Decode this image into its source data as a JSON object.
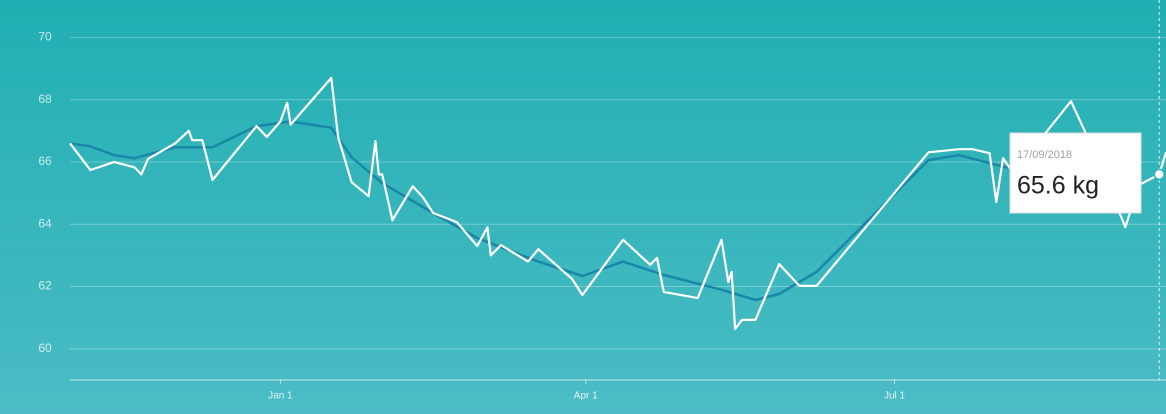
{
  "chart_data": {
    "type": "line",
    "xlim": [
      "2017-10-31",
      "2018-09-19"
    ],
    "xticks": [
      {
        "value": "2018-01-01",
        "label": "Jan 1"
      },
      {
        "value": "2018-04-01",
        "label": "Apr 1"
      },
      {
        "value": "2018-07-01",
        "label": "Jul 1"
      }
    ],
    "ylim": [
      59,
      71.2
    ],
    "yticks": [
      60,
      62,
      64,
      66,
      68,
      70
    ],
    "grid": true,
    "series": [
      {
        "color": "#ffffff",
        "x": [
          "2017-10-31",
          "2017-11-06",
          "2017-11-13",
          "2017-11-19",
          "2017-11-21",
          "2017-11-23",
          "2017-12-01",
          "2017-12-05",
          "2017-12-06",
          "2017-12-09",
          "2017-12-12",
          "2017-12-25",
          "2017-12-28",
          "2018-01-01",
          "2018-01-03",
          "2018-01-04",
          "2018-01-16",
          "2018-01-18",
          "2018-01-22",
          "2018-01-27",
          "2018-01-29",
          "2018-01-30",
          "2018-01-31",
          "2018-02-03",
          "2018-02-09",
          "2018-02-12",
          "2018-02-15",
          "2018-02-22",
          "2018-02-28",
          "2018-03-03",
          "2018-03-04",
          "2018-03-07",
          "2018-03-15",
          "2018-03-18",
          "2018-03-28",
          "2018-03-31",
          "2018-04-12",
          "2018-04-20",
          "2018-04-22",
          "2018-04-24",
          "2018-05-04",
          "2018-05-11",
          "2018-05-13",
          "2018-05-14",
          "2018-05-15",
          "2018-05-17",
          "2018-05-21",
          "2018-05-28",
          "2018-06-03",
          "2018-06-08",
          "2018-07-11",
          "2018-07-20",
          "2018-07-24",
          "2018-07-29",
          "2018-07-31",
          "2018-08-02",
          "2018-08-04",
          "2018-08-14",
          "2018-08-22",
          "2018-08-30",
          "2018-09-07",
          "2018-09-11",
          "2018-09-17",
          "2018-09-19"
        ],
        "values": [
          66.6,
          65.74,
          66.0,
          65.83,
          65.6,
          66.1,
          66.6,
          67.0,
          66.7,
          66.7,
          65.42,
          67.15,
          66.8,
          67.3,
          67.9,
          67.2,
          68.7,
          66.8,
          65.35,
          64.9,
          66.67,
          65.6,
          65.6,
          64.13,
          65.22,
          64.87,
          64.36,
          64.07,
          63.3,
          63.9,
          63.0,
          63.33,
          62.8,
          63.2,
          62.24,
          61.73,
          63.5,
          62.7,
          62.92,
          61.83,
          61.63,
          63.5,
          62.15,
          62.47,
          60.64,
          60.93,
          60.93,
          62.72,
          62.02,
          62.02,
          66.31,
          66.41,
          66.41,
          66.28,
          64.71,
          66.12,
          65.8,
          66.86,
          67.95,
          66.06,
          63.91,
          65.26,
          65.6,
          66.31
        ]
      },
      {
        "color": "#1a87a8",
        "x": [
          "2017-10-31",
          "2017-11-06",
          "2017-11-13",
          "2017-11-19",
          "2017-12-01",
          "2017-12-12",
          "2017-12-25",
          "2018-01-04",
          "2018-01-16",
          "2018-01-22",
          "2018-01-31",
          "2018-02-15",
          "2018-02-28",
          "2018-03-18",
          "2018-03-31",
          "2018-04-12",
          "2018-04-24",
          "2018-05-11",
          "2018-05-21",
          "2018-05-28",
          "2018-06-08",
          "2018-07-11",
          "2018-07-20",
          "2018-07-29",
          "2018-08-04"
        ],
        "values": [
          66.6,
          66.5,
          66.22,
          66.12,
          66.47,
          66.47,
          67.15,
          67.3,
          67.1,
          66.15,
          65.32,
          64.36,
          63.56,
          62.8,
          62.34,
          62.8,
          62.37,
          61.9,
          61.57,
          61.76,
          62.47,
          66.06,
          66.22,
          65.96,
          65.8
        ]
      }
    ],
    "tooltip": {
      "x": "2018-09-17",
      "value": 65.6,
      "date_label": "17/09/2018",
      "label": "65.6 kg"
    }
  }
}
